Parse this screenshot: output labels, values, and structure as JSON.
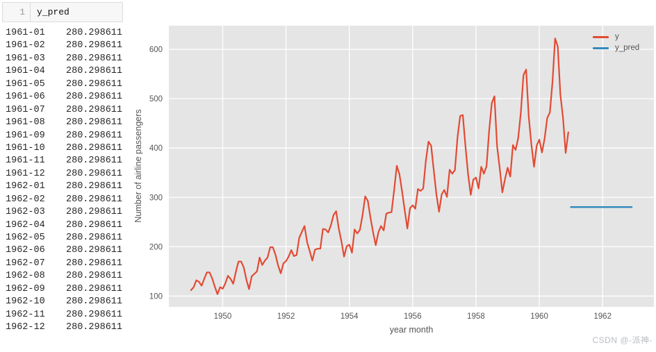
{
  "left_panel": {
    "cell": {
      "line_number": "1",
      "code": "y_pred"
    },
    "output_rows": [
      {
        "date": "1961-01",
        "value": "280.298611"
      },
      {
        "date": "1961-02",
        "value": "280.298611"
      },
      {
        "date": "1961-03",
        "value": "280.298611"
      },
      {
        "date": "1961-04",
        "value": "280.298611"
      },
      {
        "date": "1961-05",
        "value": "280.298611"
      },
      {
        "date": "1961-06",
        "value": "280.298611"
      },
      {
        "date": "1961-07",
        "value": "280.298611"
      },
      {
        "date": "1961-08",
        "value": "280.298611"
      },
      {
        "date": "1961-09",
        "value": "280.298611"
      },
      {
        "date": "1961-10",
        "value": "280.298611"
      },
      {
        "date": "1961-11",
        "value": "280.298611"
      },
      {
        "date": "1961-12",
        "value": "280.298611"
      },
      {
        "date": "1962-01",
        "value": "280.298611"
      },
      {
        "date": "1962-02",
        "value": "280.298611"
      },
      {
        "date": "1962-03",
        "value": "280.298611"
      },
      {
        "date": "1962-04",
        "value": "280.298611"
      },
      {
        "date": "1962-05",
        "value": "280.298611"
      },
      {
        "date": "1962-06",
        "value": "280.298611"
      },
      {
        "date": "1962-07",
        "value": "280.298611"
      },
      {
        "date": "1962-08",
        "value": "280.298611"
      },
      {
        "date": "1962-09",
        "value": "280.298611"
      },
      {
        "date": "1962-10",
        "value": "280.298611"
      },
      {
        "date": "1962-11",
        "value": "280.298611"
      },
      {
        "date": "1962-12",
        "value": "280.298611"
      }
    ]
  },
  "figure": {
    "watermark": "CSDN @-派神-"
  },
  "chart_data": {
    "type": "line",
    "title": "",
    "xlabel": "year month",
    "ylabel": "Number of airline passengers",
    "x_ticks": [
      1950,
      1952,
      1954,
      1956,
      1958,
      1960,
      1962
    ],
    "y_ticks": [
      100,
      200,
      300,
      400,
      500,
      600
    ],
    "xlim": [
      1948.3,
      1963.62
    ],
    "ylim": [
      78.1,
      647.9
    ],
    "grid": true,
    "legend_position": "upper right",
    "plot_bg": "#E5E5E5",
    "grid_color": "#FFFFFF",
    "text_color": "#555555",
    "series": [
      {
        "name": "y",
        "color": "#E24A33",
        "start_year": 1949,
        "start_month": 1,
        "freq": "monthly",
        "values": [
          112,
          118,
          132,
          129,
          121,
          135,
          148,
          148,
          136,
          119,
          104,
          118,
          115,
          126,
          141,
          135,
          125,
          149,
          170,
          170,
          158,
          133,
          114,
          140,
          145,
          150,
          178,
          163,
          172,
          178,
          199,
          199,
          184,
          162,
          146,
          166,
          171,
          180,
          193,
          181,
          183,
          218,
          230,
          242,
          209,
          191,
          172,
          194,
          196,
          196,
          236,
          235,
          229,
          243,
          264,
          272,
          237,
          211,
          180,
          201,
          204,
          188,
          235,
          227,
          234,
          264,
          302,
          293,
          259,
          229,
          203,
          229,
          242,
          233,
          267,
          269,
          270,
          315,
          364,
          347,
          312,
          274,
          237,
          278,
          284,
          277,
          317,
          313,
          318,
          374,
          413,
          405,
          355,
          306,
          271,
          306,
          315,
          301,
          356,
          348,
          355,
          422,
          465,
          467,
          404,
          347,
          305,
          336,
          340,
          318,
          362,
          348,
          363,
          435,
          491,
          505,
          404,
          359,
          310,
          337,
          360,
          342,
          406,
          396,
          420,
          472,
          548,
          559,
          463,
          407,
          362,
          405,
          417,
          391,
          419,
          461,
          472,
          535,
          622,
          606,
          508,
          461,
          390,
          432
        ]
      },
      {
        "name": "y_pred",
        "color": "#348ABD",
        "start_year": 1961,
        "start_month": 1,
        "freq": "monthly",
        "values": [
          280.298611,
          280.298611,
          280.298611,
          280.298611,
          280.298611,
          280.298611,
          280.298611,
          280.298611,
          280.298611,
          280.298611,
          280.298611,
          280.298611,
          280.298611,
          280.298611,
          280.298611,
          280.298611,
          280.298611,
          280.298611,
          280.298611,
          280.298611,
          280.298611,
          280.298611,
          280.298611,
          280.298611
        ]
      }
    ]
  }
}
